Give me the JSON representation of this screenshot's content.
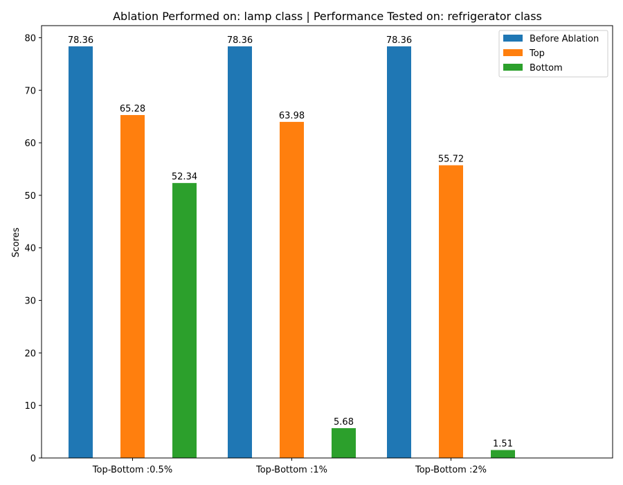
{
  "chart_data": {
    "type": "bar",
    "title": "Ablation Performed on: lamp class | Performance Tested on: refrigerator class",
    "xlabel": "",
    "ylabel": "Scores",
    "categories": [
      "Top-Bottom :0.5%",
      "Top-Bottom :1%",
      "Top-Bottom :2%"
    ],
    "series": [
      {
        "name": "Before Ablation",
        "color": "#1f77b4",
        "values": [
          78.36,
          78.36,
          78.36
        ]
      },
      {
        "name": "Top",
        "color": "#ff7f0e",
        "values": [
          65.28,
          63.98,
          55.72
        ]
      },
      {
        "name": "Bottom",
        "color": "#2ca02c",
        "values": [
          52.34,
          5.68,
          1.51
        ]
      }
    ],
    "ylim": [
      0,
      82.3
    ],
    "yticks": [
      0,
      10,
      20,
      30,
      40,
      50,
      60,
      70,
      80
    ],
    "legend": "top-right",
    "grid": false
  }
}
